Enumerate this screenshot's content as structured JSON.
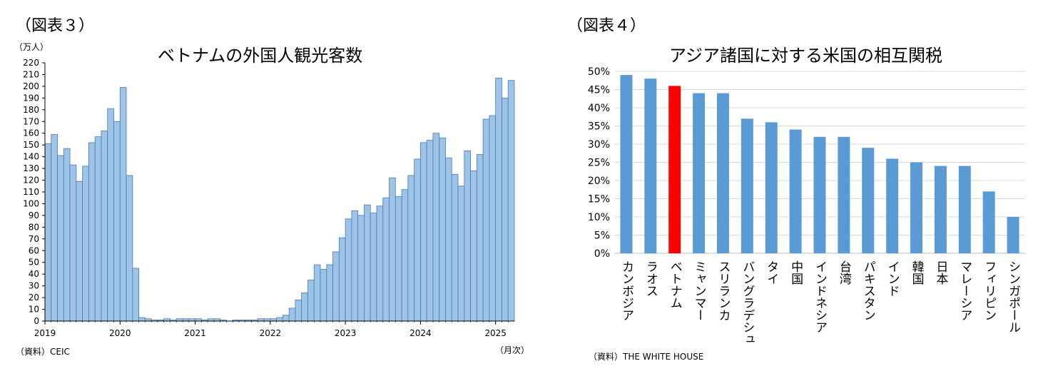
{
  "left": {
    "fig_label": "（図表３）",
    "unit_label": "（万人）",
    "source": "（資料）CEIC",
    "x_unit": "（月次）",
    "chart_data": {
      "type": "bar",
      "title": "ベトナムの外国人観光客数",
      "ylim": [
        0,
        220
      ],
      "y_ticks": [
        0,
        10,
        20,
        30,
        40,
        50,
        60,
        70,
        80,
        90,
        100,
        110,
        120,
        130,
        140,
        150,
        160,
        170,
        180,
        190,
        200,
        210,
        220
      ],
      "x_tick_labels": [
        "2019",
        "2020",
        "2021",
        "2022",
        "2023",
        "2024",
        "2025"
      ],
      "bar_color": "#9dc3e6",
      "values": [
        151,
        159,
        141,
        147,
        133,
        119,
        132,
        152,
        157,
        162,
        181,
        170,
        199,
        124,
        45,
        3,
        2,
        1,
        1,
        2,
        1,
        2,
        2,
        2,
        2,
        1,
        2,
        2,
        1,
        0,
        1,
        1,
        1,
        1,
        2,
        2,
        2,
        3,
        5,
        11,
        18,
        24,
        35,
        48,
        44,
        48,
        59,
        71,
        87,
        94,
        90,
        99,
        92,
        98,
        105,
        122,
        106,
        112,
        124,
        138,
        152,
        154,
        160,
        156,
        139,
        125,
        115,
        145,
        128,
        142,
        172,
        175,
        207,
        190,
        205
      ]
    }
  },
  "right": {
    "fig_label": "（図表４）",
    "source": "（資料）THE WHITE HOUSE",
    "chart_data": {
      "type": "bar",
      "title": "アジア諸国に対する米国の相互関税",
      "ylim": [
        0,
        50
      ],
      "y_ticks": [
        "0%",
        "5%",
        "10%",
        "15%",
        "20%",
        "25%",
        "30%",
        "35%",
        "40%",
        "45%",
        "50%"
      ],
      "categories": [
        "カンボジア",
        "ラオス",
        "ベトナム",
        "ミャンマー",
        "スリランカ",
        "バングラデシュ",
        "タイ",
        "中国",
        "インドネシア",
        "台湾",
        "パキスタン",
        "インド",
        "韓国",
        "日本",
        "マレーシア",
        "フィリピン",
        "シンガポール"
      ],
      "values": [
        49,
        48,
        46,
        44,
        44,
        37,
        36,
        34,
        32,
        32,
        29,
        26,
        25,
        24,
        24,
        17,
        10
      ],
      "bar_color": "#5b9bd5",
      "highlight_color": "#ff0000",
      "highlight_category": "ベトナム"
    }
  }
}
